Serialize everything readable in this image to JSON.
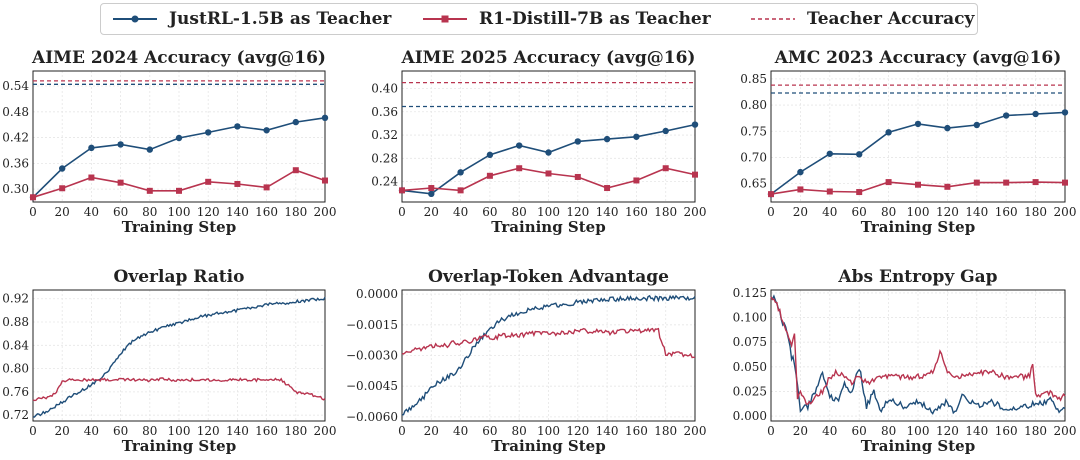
{
  "legend": {
    "justrl": "JustRL-1.5B as Teacher",
    "r1": "R1-Distill-7B as Teacher",
    "teacher": "Teacher Accuracy"
  },
  "colors": {
    "justrl": "#1f4e79",
    "r1": "#b8344f",
    "grid": "#e6e6e6"
  },
  "chart_data": [
    {
      "type": "line",
      "title": "AIME 2024 Accuracy (avg@16)",
      "xlabel": "Training Step",
      "ylabel": "",
      "xlim": [
        0,
        200
      ],
      "ylim": [
        0.27,
        0.575
      ],
      "xticks": [
        0,
        20,
        40,
        60,
        80,
        100,
        120,
        140,
        160,
        180,
        200
      ],
      "yticks": [
        0.3,
        0.36,
        0.42,
        0.48,
        0.54
      ],
      "ytick_decimals": 2,
      "markers": true,
      "x": [
        0,
        20,
        40,
        60,
        80,
        100,
        120,
        140,
        160,
        180,
        200
      ],
      "series": [
        {
          "name": "JustRL-1.5B as Teacher",
          "key": "justrl",
          "marker": "circle",
          "values": [
            0.281,
            0.348,
            0.396,
            0.404,
            0.392,
            0.419,
            0.432,
            0.446,
            0.437,
            0.456,
            0.466
          ]
        },
        {
          "name": "R1-Distill-7B as Teacher",
          "key": "r1",
          "marker": "square",
          "values": [
            0.281,
            0.302,
            0.327,
            0.315,
            0.296,
            0.296,
            0.317,
            0.312,
            0.304,
            0.344,
            0.32
          ]
        }
      ],
      "teacher_lines": [
        {
          "key": "justrl",
          "value": 0.544
        },
        {
          "key": "r1",
          "value": 0.552
        }
      ]
    },
    {
      "type": "line",
      "title": "AIME 2025 Accuracy (avg@16)",
      "xlabel": "Training Step",
      "ylabel": "",
      "xlim": [
        0,
        200
      ],
      "ylim": [
        0.205,
        0.43
      ],
      "xticks": [
        0,
        20,
        40,
        60,
        80,
        100,
        120,
        140,
        160,
        180,
        200
      ],
      "yticks": [
        0.24,
        0.28,
        0.32,
        0.36,
        0.4
      ],
      "ytick_decimals": 2,
      "markers": true,
      "x": [
        0,
        20,
        40,
        60,
        80,
        100,
        120,
        140,
        160,
        180,
        200
      ],
      "series": [
        {
          "name": "JustRL-1.5B as Teacher",
          "key": "justrl",
          "marker": "circle",
          "values": [
            0.225,
            0.219,
            0.256,
            0.286,
            0.302,
            0.29,
            0.309,
            0.313,
            0.317,
            0.327,
            0.338
          ]
        },
        {
          "name": "R1-Distill-7B as Teacher",
          "key": "r1",
          "marker": "square",
          "values": [
            0.225,
            0.229,
            0.225,
            0.25,
            0.263,
            0.254,
            0.248,
            0.229,
            0.242,
            0.263,
            0.252
          ]
        }
      ],
      "teacher_lines": [
        {
          "key": "justrl",
          "value": 0.369
        },
        {
          "key": "r1",
          "value": 0.41
        }
      ]
    },
    {
      "type": "line",
      "title": "AMC 2023 Accuracy (avg@16)",
      "xlabel": "Training Step",
      "ylabel": "",
      "xlim": [
        0,
        200
      ],
      "ylim": [
        0.615,
        0.865
      ],
      "xticks": [
        0,
        20,
        40,
        60,
        80,
        100,
        120,
        140,
        160,
        180,
        200
      ],
      "yticks": [
        0.65,
        0.7,
        0.75,
        0.8,
        0.85
      ],
      "ytick_decimals": 2,
      "markers": true,
      "x": [
        0,
        20,
        40,
        60,
        80,
        100,
        120,
        140,
        160,
        180,
        200
      ],
      "series": [
        {
          "name": "JustRL-1.5B as Teacher",
          "key": "justrl",
          "marker": "circle",
          "values": [
            0.63,
            0.672,
            0.707,
            0.706,
            0.748,
            0.764,
            0.756,
            0.762,
            0.78,
            0.783,
            0.786
          ]
        },
        {
          "name": "R1-Distill-7B as Teacher",
          "key": "r1",
          "marker": "square",
          "values": [
            0.63,
            0.639,
            0.635,
            0.634,
            0.653,
            0.648,
            0.644,
            0.652,
            0.652,
            0.653,
            0.652
          ]
        }
      ],
      "teacher_lines": [
        {
          "key": "justrl",
          "value": 0.823
        },
        {
          "key": "r1",
          "value": 0.838
        }
      ]
    },
    {
      "type": "line",
      "title": "Overlap Ratio",
      "xlabel": "Training Step",
      "ylabel": "",
      "xlim": [
        0,
        200
      ],
      "ylim": [
        0.71,
        0.935
      ],
      "xticks": [
        0,
        20,
        40,
        60,
        80,
        100,
        120,
        140,
        160,
        180,
        200
      ],
      "yticks": [
        0.72,
        0.76,
        0.8,
        0.84,
        0.88,
        0.92
      ],
      "ytick_decimals": 2,
      "markers": false,
      "noise": 0.0025,
      "x": [
        0,
        5,
        10,
        15,
        20,
        25,
        30,
        35,
        40,
        45,
        50,
        55,
        60,
        65,
        70,
        80,
        90,
        100,
        110,
        120,
        130,
        140,
        150,
        160,
        170,
        180,
        190,
        200
      ],
      "series": [
        {
          "name": "JustRL-1.5B as Teacher",
          "key": "justrl",
          "values": [
            0.717,
            0.722,
            0.726,
            0.735,
            0.742,
            0.75,
            0.758,
            0.765,
            0.772,
            0.782,
            0.792,
            0.808,
            0.826,
            0.84,
            0.85,
            0.862,
            0.872,
            0.878,
            0.886,
            0.892,
            0.896,
            0.9,
            0.905,
            0.91,
            0.912,
            0.915,
            0.918,
            0.921
          ]
        },
        {
          "name": "R1-Distill-7B as Teacher",
          "key": "r1",
          "values": [
            0.746,
            0.748,
            0.75,
            0.756,
            0.779,
            0.781,
            0.781,
            0.781,
            0.78,
            0.781,
            0.781,
            0.781,
            0.782,
            0.781,
            0.781,
            0.78,
            0.782,
            0.78,
            0.781,
            0.781,
            0.78,
            0.781,
            0.781,
            0.78,
            0.781,
            0.76,
            0.756,
            0.748
          ]
        }
      ],
      "teacher_lines": []
    },
    {
      "type": "line",
      "title": "Overlap-Token Advantage",
      "xlabel": "Training Step",
      "ylabel": "",
      "xlim": [
        0,
        200
      ],
      "ylim": [
        -0.0062,
        0.0002
      ],
      "xticks": [
        0,
        20,
        40,
        60,
        80,
        100,
        120,
        140,
        160,
        180,
        200
      ],
      "yticks": [
        -0.006,
        -0.0045,
        -0.003,
        -0.0015,
        0.0
      ],
      "ytick_decimals": 4,
      "markers": false,
      "noise": 0.00012,
      "x": [
        0,
        5,
        10,
        15,
        20,
        25,
        30,
        35,
        40,
        45,
        50,
        55,
        60,
        65,
        70,
        80,
        90,
        100,
        110,
        120,
        130,
        140,
        150,
        160,
        170,
        175,
        180,
        190,
        200
      ],
      "series": [
        {
          "name": "JustRL-1.5B as Teacher",
          "key": "justrl",
          "values": [
            -0.0059,
            -0.0056,
            -0.0053,
            -0.005,
            -0.0046,
            -0.0043,
            -0.0041,
            -0.0039,
            -0.0036,
            -0.003,
            -0.0025,
            -0.0021,
            -0.0017,
            -0.0014,
            -0.0012,
            -0.0009,
            -0.0007,
            -0.0006,
            -0.0005,
            -0.0004,
            -0.0003,
            -0.0003,
            -0.0002,
            -0.0002,
            -0.0002,
            -0.0002,
            -0.0002,
            -0.0002,
            -0.0002
          ]
        },
        {
          "name": "R1-Distill-7B as Teacher",
          "key": "r1",
          "values": [
            -0.0029,
            -0.0028,
            -0.0027,
            -0.0026,
            -0.0026,
            -0.0025,
            -0.0025,
            -0.0024,
            -0.0024,
            -0.0023,
            -0.0022,
            -0.0021,
            -0.0021,
            -0.0021,
            -0.002,
            -0.002,
            -0.0019,
            -0.0019,
            -0.0019,
            -0.0018,
            -0.0018,
            -0.0019,
            -0.0018,
            -0.0018,
            -0.0018,
            -0.0018,
            -0.0029,
            -0.0029,
            -0.0031
          ]
        }
      ],
      "teacher_lines": []
    },
    {
      "type": "line",
      "title": "Abs Entropy Gap",
      "xlabel": "Training Step",
      "ylabel": "",
      "xlim": [
        0,
        200
      ],
      "ylim": [
        -0.005,
        0.128
      ],
      "xticks": [
        0,
        20,
        40,
        60,
        80,
        100,
        120,
        140,
        160,
        180,
        200
      ],
      "yticks": [
        0.0,
        0.025,
        0.05,
        0.075,
        0.1,
        0.125
      ],
      "ytick_decimals": 3,
      "markers": false,
      "noise": 0.003,
      "x": [
        0,
        2,
        5,
        8,
        11,
        14,
        16,
        18,
        20,
        25,
        30,
        35,
        40,
        45,
        50,
        55,
        60,
        65,
        70,
        75,
        80,
        90,
        100,
        110,
        115,
        120,
        125,
        130,
        140,
        150,
        160,
        170,
        176,
        178,
        180,
        185,
        190,
        195,
        200
      ],
      "series": [
        {
          "name": "JustRL-1.5B as Teacher",
          "key": "justrl",
          "values": [
            0.121,
            0.119,
            0.11,
            0.095,
            0.085,
            0.06,
            0.055,
            0.03,
            0.006,
            0.01,
            0.025,
            0.045,
            0.02,
            0.015,
            0.032,
            0.025,
            0.05,
            0.01,
            0.025,
            0.005,
            0.018,
            0.01,
            0.015,
            0.005,
            0.01,
            0.015,
            0.003,
            0.02,
            0.01,
            0.015,
            0.006,
            0.01,
            0.011,
            0.012,
            0.015,
            0.013,
            0.017,
            0.006,
            0.006
          ]
        },
        {
          "name": "R1-Distill-7B as Teacher",
          "key": "r1",
          "values": [
            0.121,
            0.118,
            0.11,
            0.096,
            0.085,
            0.07,
            0.085,
            0.015,
            0.025,
            0.01,
            0.02,
            0.025,
            0.04,
            0.045,
            0.04,
            0.035,
            0.04,
            0.035,
            0.035,
            0.04,
            0.04,
            0.04,
            0.04,
            0.045,
            0.065,
            0.045,
            0.04,
            0.04,
            0.045,
            0.045,
            0.04,
            0.04,
            0.04,
            0.055,
            0.022,
            0.02,
            0.025,
            0.018,
            0.02
          ]
        }
      ],
      "teacher_lines": []
    }
  ]
}
